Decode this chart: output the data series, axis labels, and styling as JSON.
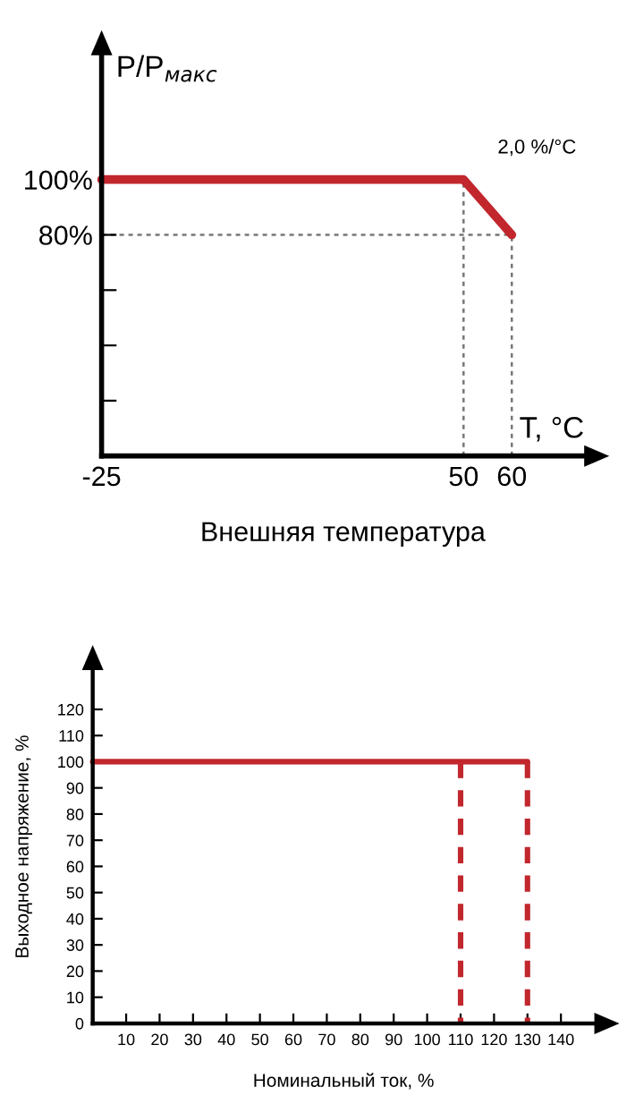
{
  "chart_data": [
    {
      "type": "line",
      "ylabel": "P/P$_{макс}$",
      "xlabel": "Внешняя температура",
      "annotations": [
        {
          "text": "2,0 %/°C",
          "x": 55,
          "y": 90
        },
        "T, °C"
      ],
      "x": [
        -25,
        50,
        60
      ],
      "series": [
        {
          "color": "#c1272d",
          "values": [
            100,
            100,
            80
          ]
        }
      ],
      "xlim": [
        -25,
        75
      ],
      "ylim": [
        0,
        145
      ],
      "xticks": [
        -25,
        50,
        60
      ],
      "yticks": [
        {
          "value": 20,
          "label": null
        },
        {
          "value": 40,
          "label": null
        },
        {
          "value": 60,
          "label": null
        },
        {
          "value": 80,
          "label": "80%"
        },
        {
          "value": 100,
          "label": "100%"
        }
      ],
      "ref_lines": [
        {
          "axis": "x",
          "value": 50,
          "color": "#777777",
          "line_style": "dashed"
        },
        {
          "axis": "x",
          "value": 60,
          "color": "#777777",
          "line_style": "dashed"
        },
        {
          "axis": "y",
          "value": 80,
          "color": "#777777",
          "line_style": "dashed"
        }
      ],
      "grid": false,
      "legend": false,
      "marker": "none"
    },
    {
      "type": "line",
      "xlabel": "Номинальный ток, %",
      "ylabel": "Выходное напряжение, %",
      "series": [
        {
          "color": "#c1272d",
          "x": [
            0,
            130
          ],
          "values": [
            100,
            100
          ],
          "line_style": "solid"
        },
        {
          "color": "#c1272d",
          "x": [
            110,
            110
          ],
          "values": [
            100,
            0
          ],
          "line_style": "dashed"
        },
        {
          "color": "#c1272d",
          "x": [
            130,
            130
          ],
          "values": [
            100,
            0
          ],
          "line_style": "dashed"
        }
      ],
      "xlim": [
        0,
        150
      ],
      "ylim": [
        0,
        135
      ],
      "xticks": [
        10,
        20,
        30,
        40,
        50,
        60,
        70,
        80,
        90,
        100,
        110,
        120,
        130,
        140
      ],
      "yticks": [
        0,
        10,
        20,
        30,
        40,
        50,
        60,
        70,
        80,
        90,
        100,
        110,
        120
      ],
      "grid": false,
      "legend": false,
      "marker": "none"
    }
  ]
}
